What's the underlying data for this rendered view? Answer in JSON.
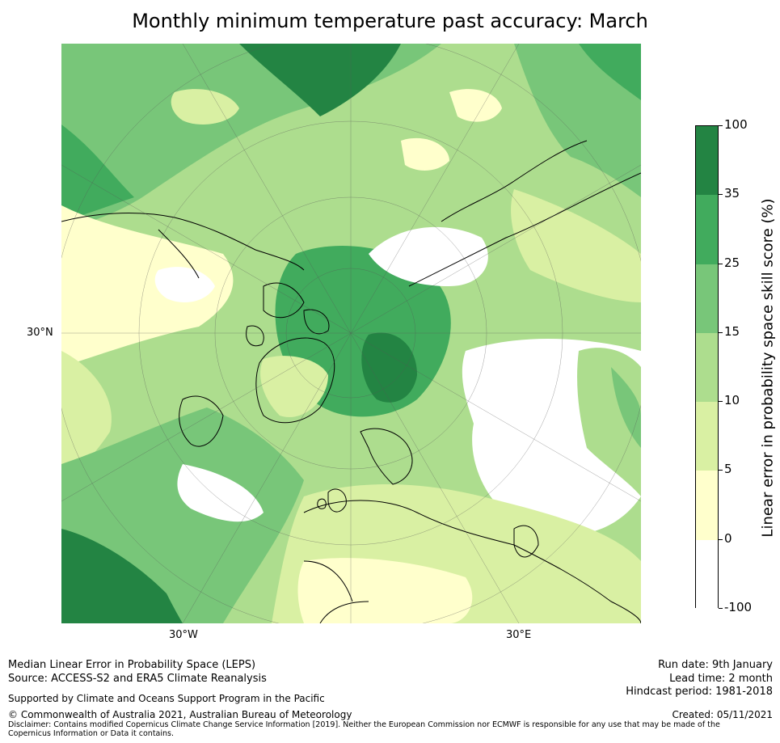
{
  "title": "Monthly minimum temperature past accuracy: March",
  "map": {
    "projection": "north-polar-stereographic",
    "lat_labels": [
      "30°N"
    ],
    "lon_labels": [
      "30°W",
      "30°E"
    ],
    "regions_shown": [
      "Arctic",
      "Greenland",
      "North Atlantic",
      "Europe",
      "Northern Eurasia",
      "Northern Canada"
    ]
  },
  "colorbar": {
    "title": "Linear error in probability space skill score (%)",
    "bins": [
      {
        "from": -100,
        "to": 0,
        "color": "#ffffff"
      },
      {
        "from": 0,
        "to": 5,
        "color": "#ffffcc"
      },
      {
        "from": 5,
        "to": 10,
        "color": "#d9f0a3"
      },
      {
        "from": 10,
        "to": 15,
        "color": "#addd8e"
      },
      {
        "from": 15,
        "to": 25,
        "color": "#78c679"
      },
      {
        "from": 25,
        "to": 35,
        "color": "#41ab5d"
      },
      {
        "from": 35,
        "to": 100,
        "color": "#238443"
      }
    ],
    "tick_labels": [
      "100",
      "35",
      "25",
      "15",
      "10",
      "5",
      "0",
      "-100"
    ]
  },
  "footer": {
    "left": {
      "line1": "Median Linear Error in Probability Space (LEPS)",
      "line2": "Source: ACCESS-S2 and ERA5 Climate Reanalysis",
      "support": "Supported by Climate and Oceans Support Program in the Pacific",
      "copyright": "© Commonwealth of Australia 2021, Australian Bureau of Meteorology",
      "disclaimer": "Disclaimer: Contains modified Copernicus Climate Change Service Information [2019]. Neither the European Commission nor ECMWF is responsible for any use that may be made of the Copernicus Information or Data it contains."
    },
    "right": {
      "run_date": "Run date: 9th January",
      "lead_time": "Lead time: 2 month",
      "hindcast": "Hindcast period: 1981-2018",
      "created": "Created: 05/11/2021"
    }
  }
}
